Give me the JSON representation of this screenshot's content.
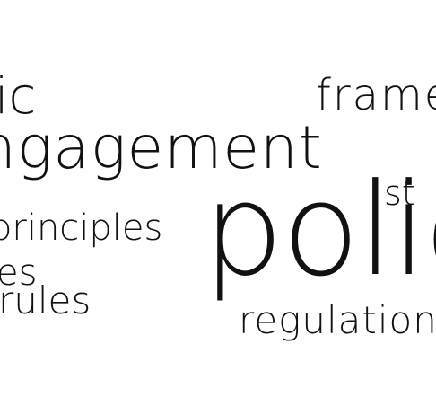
{
  "words": {
    "ic": "ic",
    "frame": "frame",
    "engagement": "ngagement",
    "st": "st",
    "principles": "principles",
    "es": "es",
    "rules": "rules",
    "policy": "polic",
    "regulation": "regulation"
  },
  "colors": {
    "text": "#111111",
    "background": "#ffffff"
  }
}
